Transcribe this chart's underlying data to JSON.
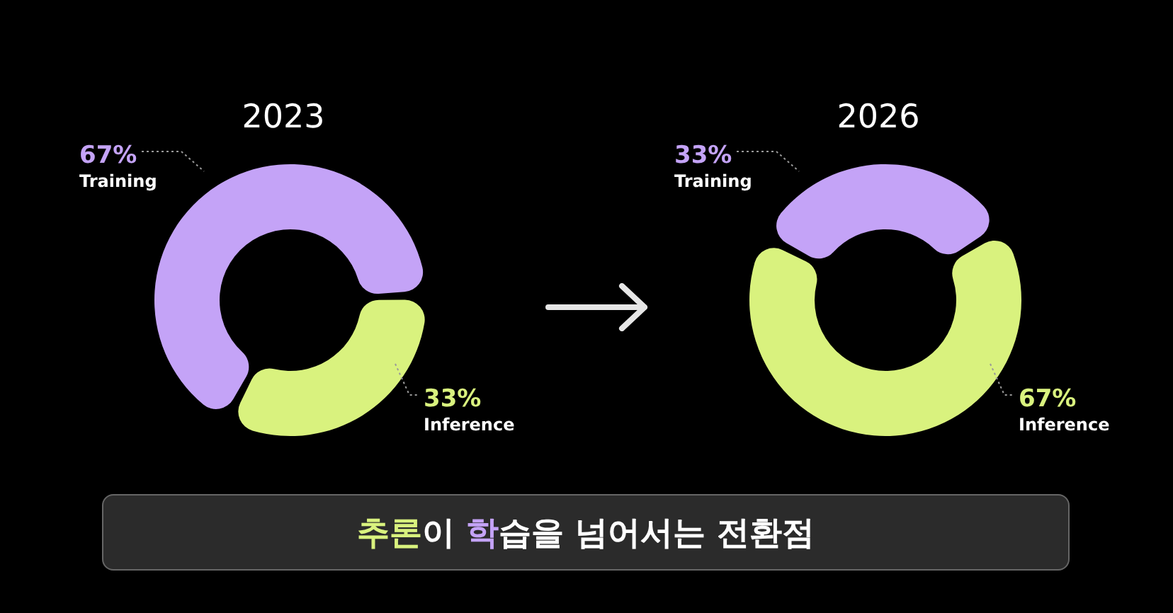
{
  "chart_data": [
    {
      "type": "donut",
      "title": "2023",
      "categories": [
        "Training",
        "Inference"
      ],
      "values": [
        67,
        33
      ],
      "value_labels": [
        "67%",
        "33%"
      ],
      "colors": [
        "#c4a3f7",
        "#d9f27e"
      ],
      "legend": false,
      "annotations": [
        "추론이 학습을 넘어서는 전환점"
      ]
    },
    {
      "type": "donut",
      "title": "2026",
      "categories": [
        "Training",
        "Inference"
      ],
      "values": [
        33,
        67
      ],
      "value_labels": [
        "33%",
        "67%"
      ],
      "colors": [
        "#c4a3f7",
        "#d9f27e"
      ],
      "legend": false
    }
  ]
}
